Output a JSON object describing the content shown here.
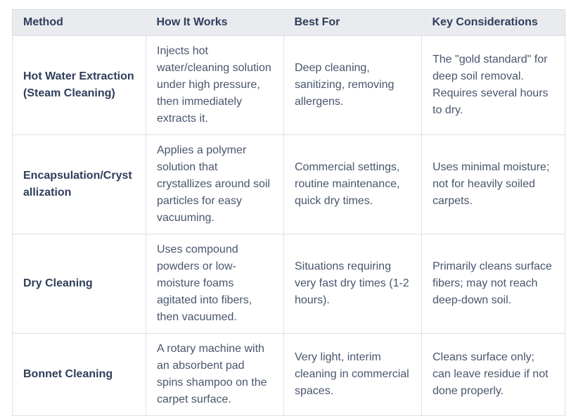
{
  "table": {
    "headers": [
      "Method",
      "How It Works",
      "Best For",
      "Key Considerations"
    ],
    "rows": [
      {
        "method": "Hot Water Extraction (Steam Cleaning)",
        "how_it_works": "Injects hot water/cleaning solution under high pressure, then immediately extracts it.",
        "best_for": "Deep cleaning, sanitizing, removing allergens.",
        "key_considerations": "The \"gold standard\" for deep soil removal. Requires several hours to dry."
      },
      {
        "method": "Encapsulation/Crystallization",
        "how_it_works": "Applies a polymer solution that crystallizes around soil particles for easy vacuuming.",
        "best_for": "Commercial settings, routine maintenance, quick dry times.",
        "key_considerations": "Uses minimal moisture; not for heavily soiled carpets."
      },
      {
        "method": "Dry Cleaning",
        "how_it_works": "Uses compound powders or low-moisture foams agitated into fibers, then vacuumed.",
        "best_for": "Situations requiring very fast dry times (1-2 hours).",
        "key_considerations": "Primarily cleans surface fibers; may not reach deep-down soil."
      },
      {
        "method": "Bonnet Cleaning",
        "how_it_works": "A rotary machine with an absorbent pad spins shampoo on the carpet surface.",
        "best_for": "Very light, interim cleaning in commercial spaces.",
        "key_considerations": "Cleans surface only; can leave residue if not done properly."
      }
    ]
  },
  "colors": {
    "header_background": "#e9ebef",
    "header_text": "#2f3e5a",
    "body_text": "#49566e",
    "border": "#dde1e6",
    "page_background": "#ffffff"
  }
}
